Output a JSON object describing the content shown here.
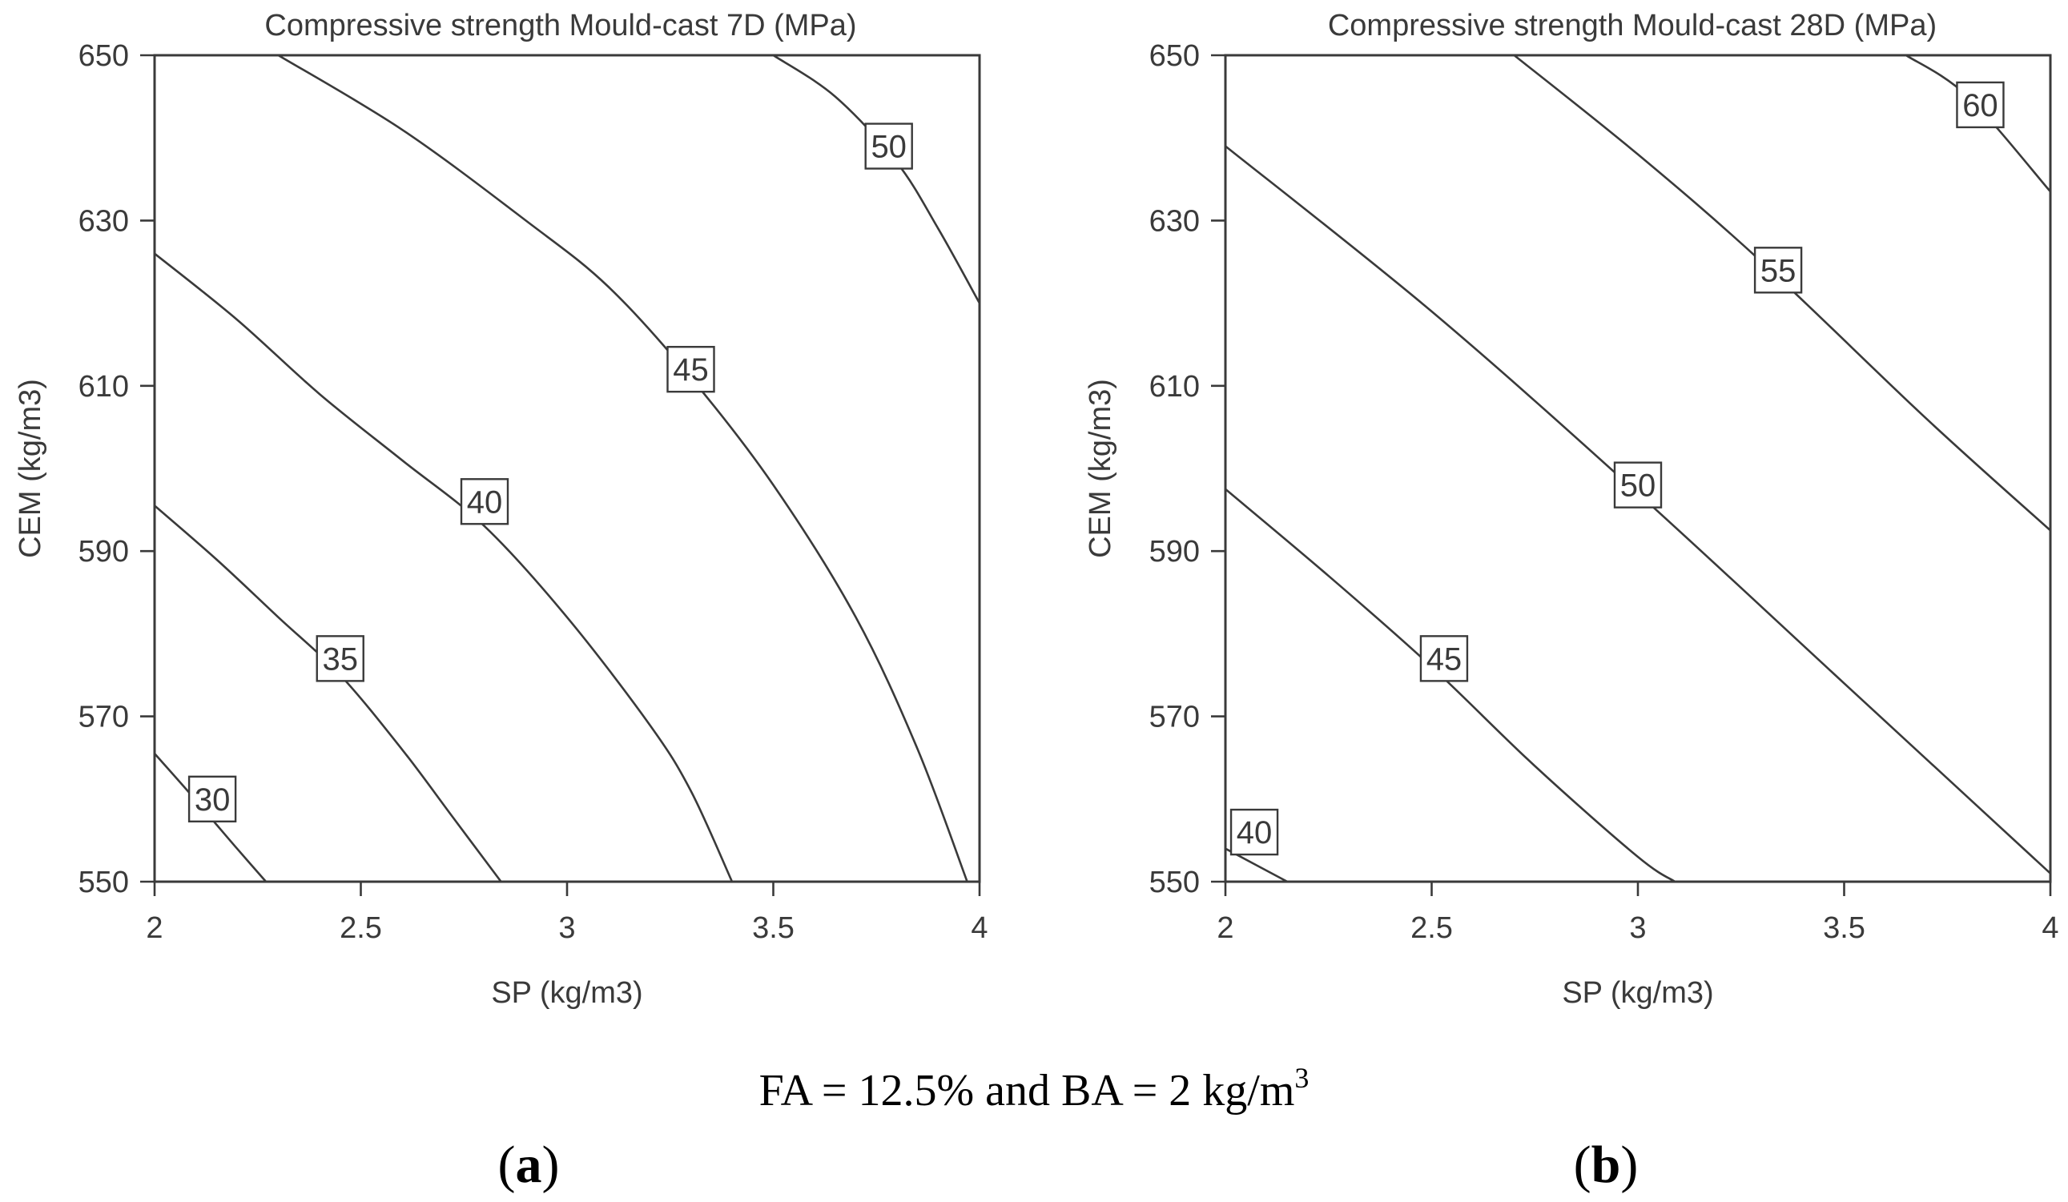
{
  "chart_data": [
    {
      "type": "contour",
      "panel": "a",
      "title": "Compressive strength Mould-cast 7D (MPa)",
      "xlabel": "SP (kg/m3)",
      "ylabel": "CEM (kg/m3)",
      "xlim": [
        2,
        4
      ],
      "ylim": [
        550,
        650
      ],
      "x_ticks": [
        2,
        2.5,
        3,
        3.5,
        4
      ],
      "x_tick_labels": [
        "2",
        "2.5",
        "3",
        "3.5",
        "4"
      ],
      "y_ticks": [
        550,
        570,
        590,
        610,
        630,
        650
      ],
      "y_tick_labels": [
        "550",
        "570",
        "590",
        "610",
        "630",
        "650"
      ],
      "contours": [
        {
          "level": "30",
          "label_at": [
            2.14,
            560
          ],
          "points": [
            [
              2,
              565.5
            ],
            [
              2.08,
              561
            ],
            [
              2.14,
              557.5
            ],
            [
              2.2,
              554
            ],
            [
              2.27,
              550
            ]
          ]
        },
        {
          "level": "35",
          "label_at": [
            2.45,
            577
          ],
          "points": [
            [
              2,
              595.5
            ],
            [
              2.15,
              589
            ],
            [
              2.3,
              582
            ],
            [
              2.45,
              575
            ],
            [
              2.6,
              566
            ],
            [
              2.72,
              558
            ],
            [
              2.84,
              550
            ]
          ]
        },
        {
          "level": "40",
          "label_at": [
            2.8,
            596
          ],
          "points": [
            [
              2,
              626
            ],
            [
              2.2,
              618
            ],
            [
              2.4,
              609
            ],
            [
              2.6,
              601
            ],
            [
              2.8,
              593
            ],
            [
              3.0,
              582
            ],
            [
              3.2,
              569
            ],
            [
              3.3,
              561
            ],
            [
              3.4,
              550
            ]
          ]
        },
        {
          "level": "45",
          "label_at": [
            3.3,
            612
          ],
          "points": [
            [
              2.3,
              650
            ],
            [
              2.6,
              641
            ],
            [
              2.9,
              630
            ],
            [
              3.1,
              622
            ],
            [
              3.3,
              611
            ],
            [
              3.5,
              598
            ],
            [
              3.7,
              582
            ],
            [
              3.85,
              566
            ],
            [
              3.97,
              550
            ]
          ]
        },
        {
          "level": "50",
          "label_at": [
            3.78,
            639
          ],
          "points": [
            [
              3.5,
              650
            ],
            [
              3.65,
              645
            ],
            [
              3.8,
              637
            ],
            [
              3.9,
              629
            ],
            [
              4.0,
              620
            ]
          ]
        }
      ]
    },
    {
      "type": "contour",
      "panel": "b",
      "title": "Compressive strength Mould-cast 28D (MPa)",
      "xlabel": "SP (kg/m3)",
      "ylabel": "CEM (kg/m3)",
      "xlim": [
        2,
        4
      ],
      "ylim": [
        550,
        650
      ],
      "x_ticks": [
        2,
        2.5,
        3,
        3.5,
        4
      ],
      "x_tick_labels": [
        "2",
        "2.5",
        "3",
        "3.5",
        "4"
      ],
      "y_ticks": [
        550,
        570,
        590,
        610,
        630,
        650
      ],
      "y_tick_labels": [
        "550",
        "570",
        "590",
        "610",
        "630",
        "650"
      ],
      "contours": [
        {
          "level": "40",
          "label_at": [
            2.07,
            556
          ],
          "points": [
            [
              2,
              554
            ],
            [
              2.15,
              550
            ]
          ]
        },
        {
          "level": "45",
          "label_at": [
            2.53,
            577
          ],
          "points": [
            [
              2,
              597.5
            ],
            [
              2.25,
              587
            ],
            [
              2.5,
              576
            ],
            [
              2.75,
              564
            ],
            [
              3.0,
              553
            ],
            [
              3.09,
              550
            ]
          ]
        },
        {
          "level": "50",
          "label_at": [
            3.0,
            598
          ],
          "points": [
            [
              2,
              639
            ],
            [
              2.5,
              619
            ],
            [
              3.0,
              597
            ],
            [
              3.5,
              574
            ],
            [
              4.0,
              551
            ]
          ]
        },
        {
          "level": "55",
          "label_at": [
            3.34,
            624
          ],
          "points": [
            [
              2.7,
              650
            ],
            [
              3.0,
              638
            ],
            [
              3.3,
              625
            ],
            [
              3.7,
              606
            ],
            [
              4.0,
              592.5
            ]
          ]
        },
        {
          "level": "60",
          "label_at": [
            3.83,
            644
          ],
          "points": [
            [
              3.65,
              650
            ],
            [
              3.8,
              645
            ],
            [
              4.0,
              633.5
            ]
          ]
        }
      ]
    }
  ],
  "caption": {
    "text": "FA = 12.5% and BA = 2 kg/m",
    "superscript": "3"
  },
  "panel_labels": [
    {
      "open": "(",
      "letter": "a",
      "close": ")"
    },
    {
      "open": "(",
      "letter": "b",
      "close": ")"
    }
  ]
}
